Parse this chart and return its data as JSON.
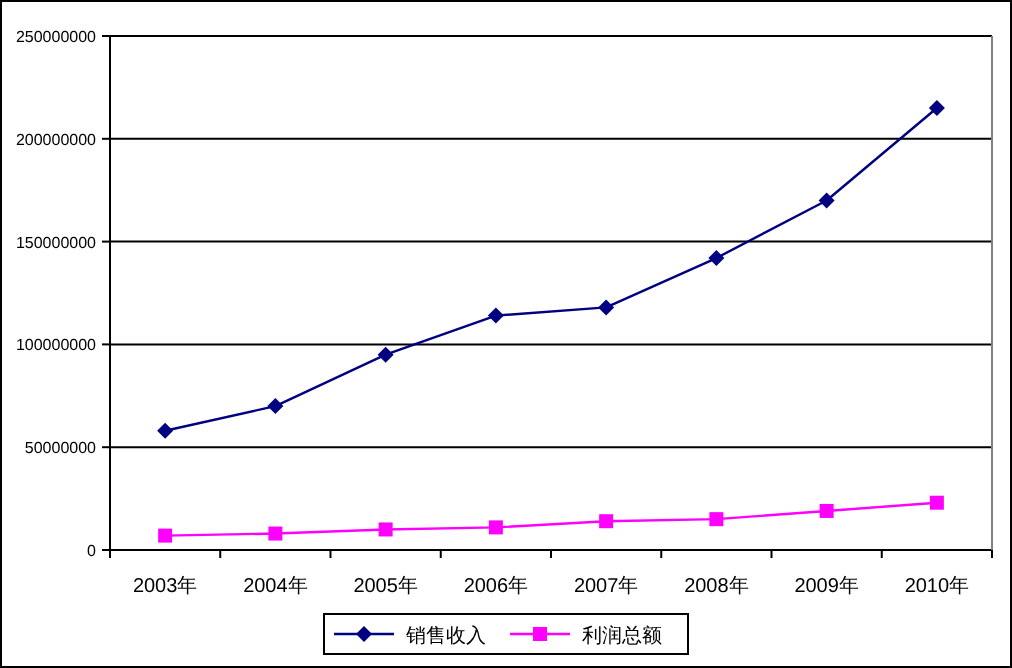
{
  "chart_data": {
    "type": "line",
    "categories": [
      "2003年",
      "2004年",
      "2005年",
      "2006年",
      "2007年",
      "2008年",
      "2009年",
      "2010年"
    ],
    "series": [
      {
        "name": "销售收入",
        "color": "#000080",
        "marker": "diamond",
        "values": [
          58000000,
          70000000,
          95000000,
          114000000,
          118000000,
          142000000,
          170000000,
          215000000
        ]
      },
      {
        "name": "利润总额",
        "color": "#ff00ff",
        "marker": "square",
        "values": [
          7000000,
          8000000,
          10000000,
          11000000,
          14000000,
          15000000,
          19000000,
          23000000
        ]
      }
    ],
    "ylim": [
      0,
      250000000
    ],
    "yticks": [
      0,
      50000000,
      100000000,
      150000000,
      200000000,
      250000000
    ],
    "grid": "y",
    "legend": "bottom"
  }
}
